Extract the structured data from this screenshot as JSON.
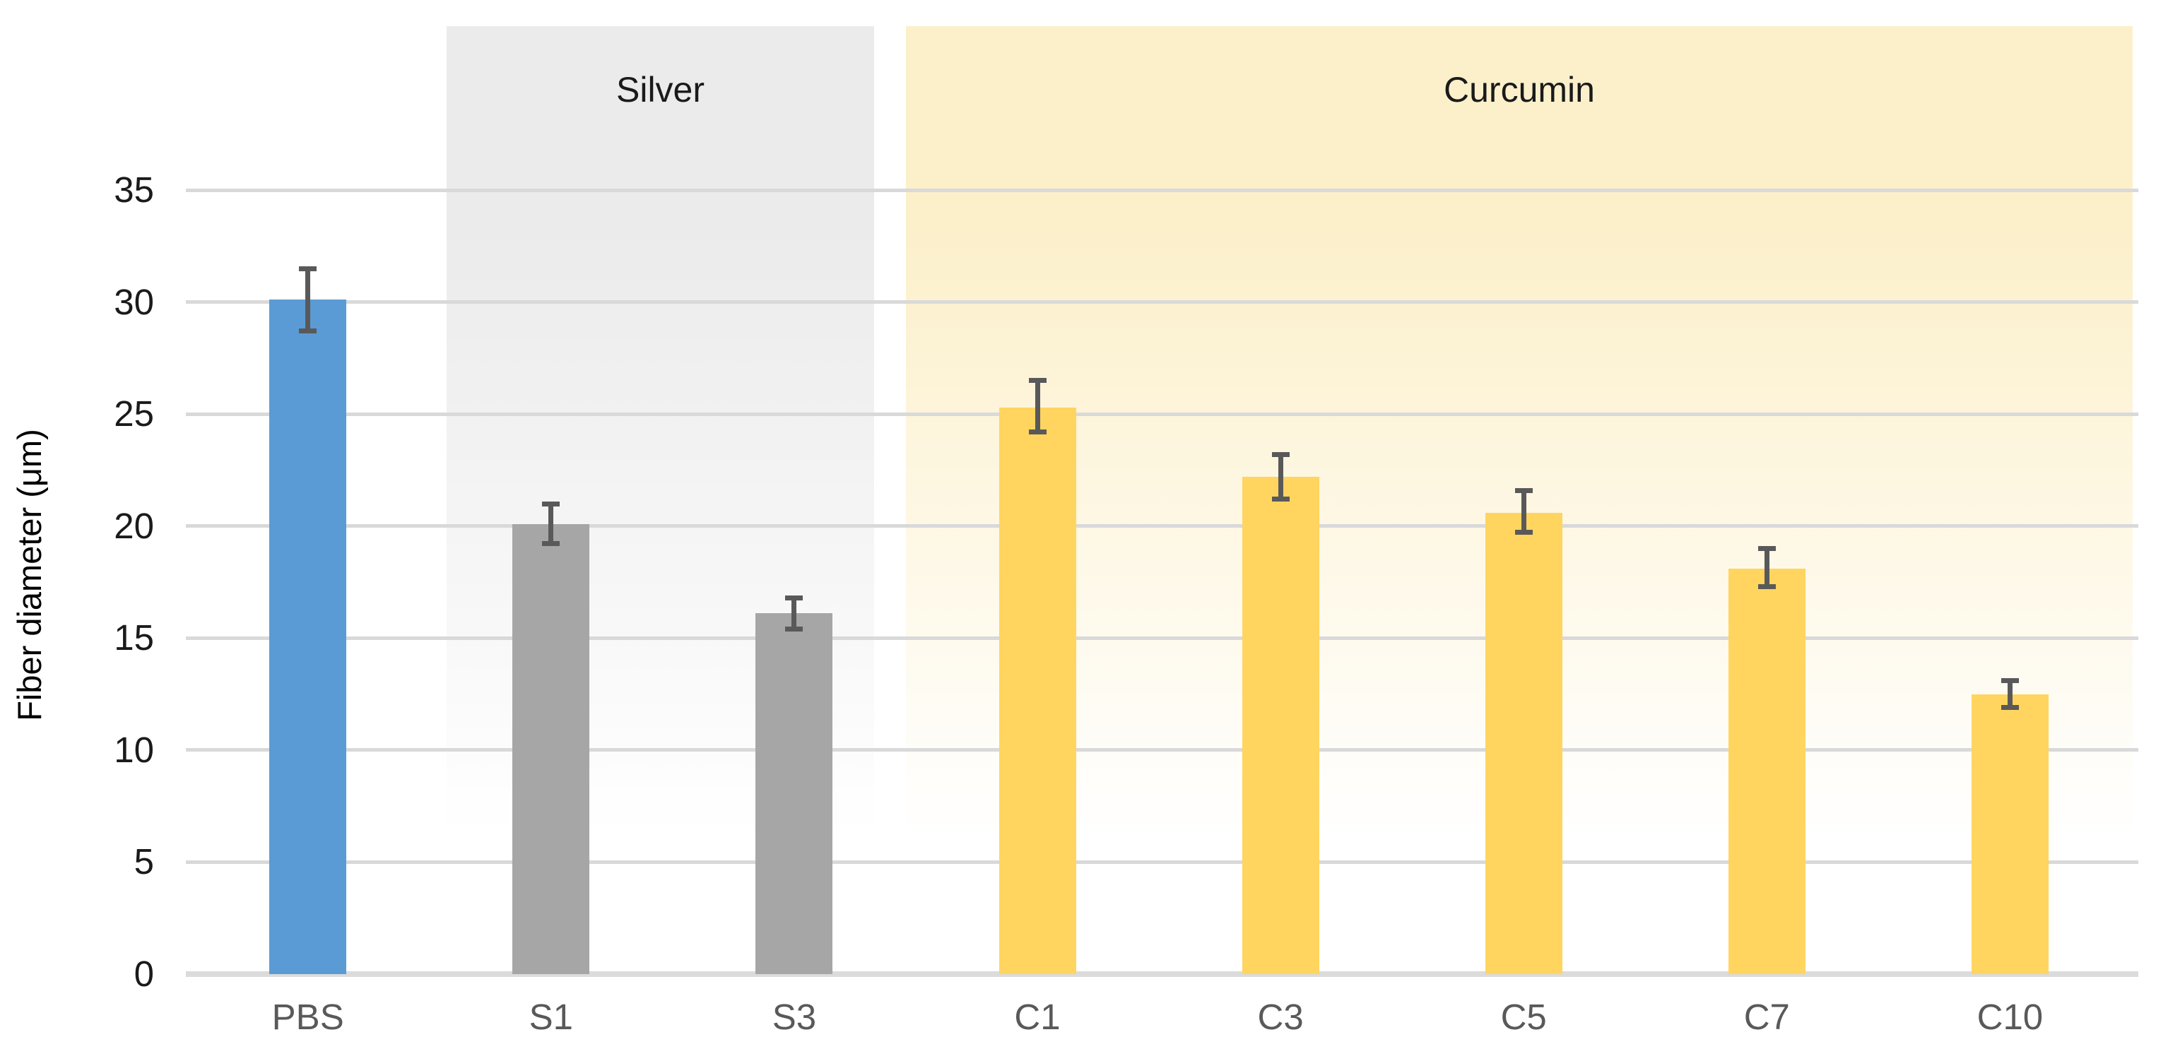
{
  "chart_data": {
    "type": "bar",
    "title": "",
    "ylabel": "Fiber diameter (μm)",
    "xlabel": "",
    "ylim": [
      0,
      35
    ],
    "yticks": [
      0,
      5,
      10,
      15,
      20,
      25,
      30,
      35
    ],
    "grid": true,
    "legend": "none",
    "categories": [
      "PBS",
      "S1",
      "S3",
      "C1",
      "C3",
      "C5",
      "C7",
      "C10"
    ],
    "values": [
      30.1,
      20.1,
      16.1,
      25.3,
      22.2,
      20.6,
      18.1,
      12.5
    ],
    "errors_plus": [
      1.5,
      1.0,
      0.8,
      1.3,
      1.1,
      1.1,
      1.0,
      0.7
    ],
    "errors_minus": [
      1.5,
      1.0,
      0.8,
      1.2,
      1.1,
      1.0,
      0.9,
      0.7
    ],
    "bar_colors": [
      "#5B9BD5",
      "#A6A6A6",
      "#A6A6A6",
      "#FFD55F",
      "#FFD55F",
      "#FFD55F",
      "#FFD55F",
      "#FFD55F"
    ],
    "regions": [
      {
        "label": "Silver",
        "covers": [
          "S1",
          "S3"
        ],
        "fill": "#EBEBEB"
      },
      {
        "label": "Curcumin",
        "covers": [
          "C1",
          "C10"
        ],
        "fill": "#FCF0CB"
      }
    ],
    "colors": {
      "error_bar": "#595959",
      "gridline": "#D9D9D9",
      "axis_line": "#DBDBDB",
      "ytick_label": "#1A1A1A",
      "xtick_label": "#595959",
      "region_label": "#1A1A1A",
      "ylabel_text": "#000000",
      "background": "#FFFFFF"
    }
  }
}
